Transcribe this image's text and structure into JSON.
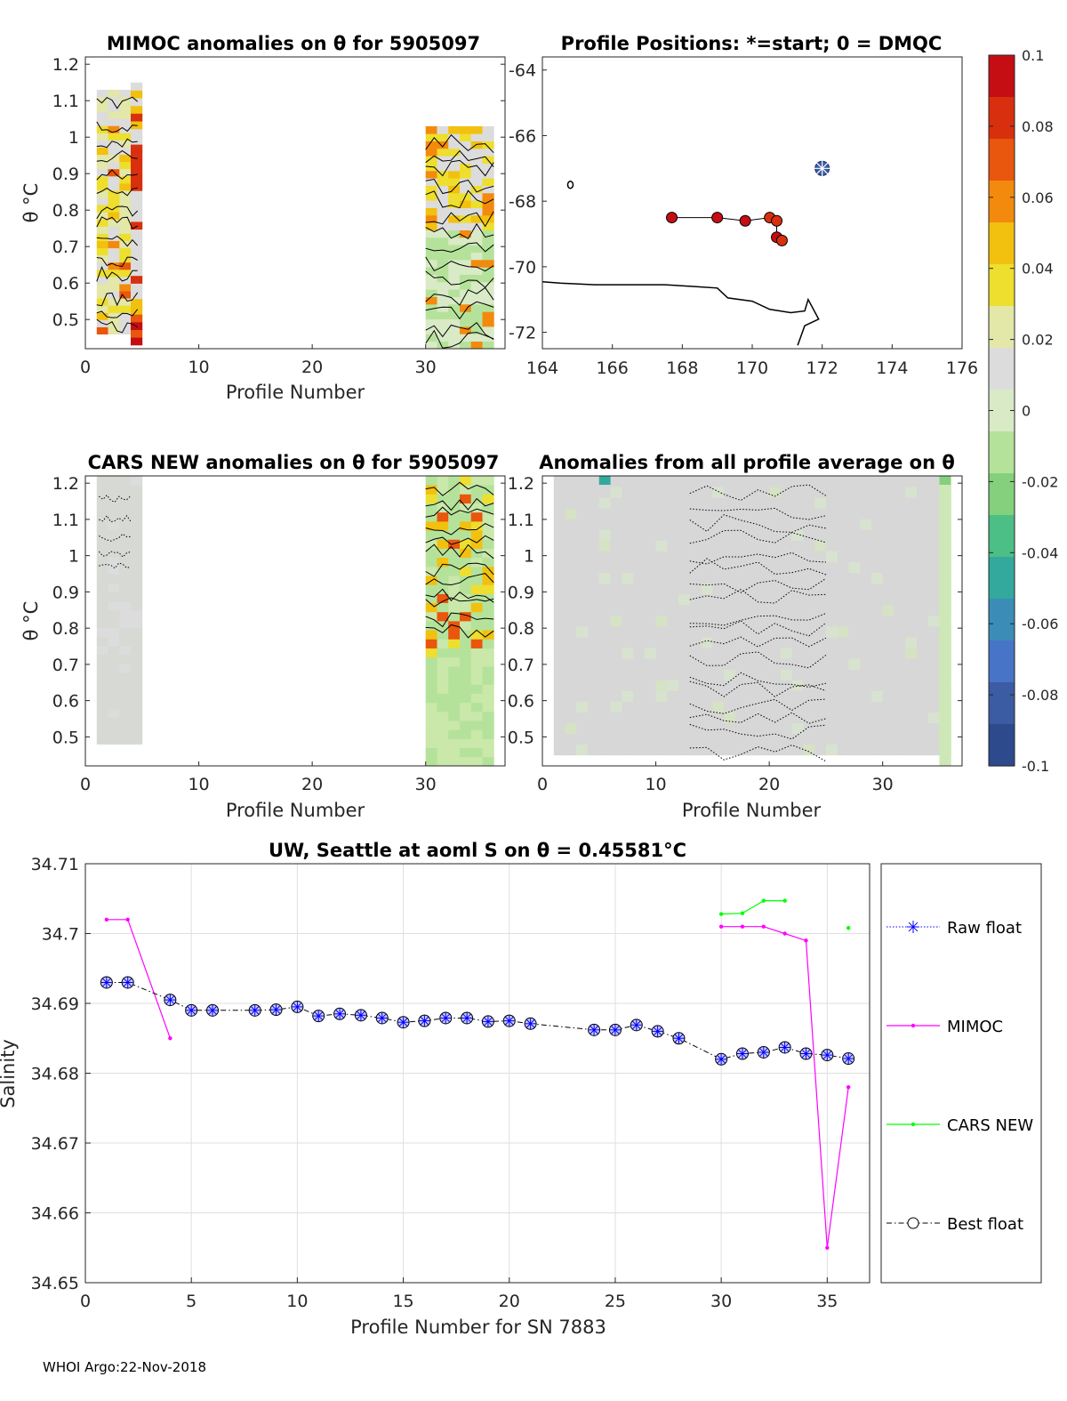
{
  "footer": "WHOI Argo:22-Nov-2018",
  "colorbar": {
    "ticks": [
      "0.1",
      "0.08",
      "0.06",
      "0.04",
      "0.02",
      "0",
      "-0.02",
      "-0.04",
      "-0.06",
      "-0.08",
      "-0.1"
    ],
    "colors": [
      "#c50d14",
      "#d8300e",
      "#e9560d",
      "#f38a0d",
      "#f2c00e",
      "#eede2e",
      "#e3e7a8",
      "#dcdcdc",
      "#d8eac6",
      "#b5e29a",
      "#84d07d",
      "#4bbf86",
      "#33a99d",
      "#3b8db7",
      "#4774c6",
      "#3b5ca2",
      "#2c4a8c"
    ]
  },
  "chart_data": [
    {
      "id": "mimoc-anomalies",
      "type": "heatmap",
      "title": "MIMOC anomalies on θ  for 5905097",
      "xlabel": "Profile Number",
      "ylabel": "θ °C",
      "xlim": [
        0,
        37
      ],
      "ylim": [
        0.42,
        1.22
      ],
      "xticks": [
        "0",
        "10",
        "20",
        "30"
      ],
      "yticks": [
        "0.5",
        "0.6",
        "0.7",
        "0.8",
        "0.9",
        "1",
        "1.1",
        "1.2"
      ]
    },
    {
      "id": "profile-positions",
      "type": "scatter",
      "title": "Profile Positions: *=start; 0 = DMQC",
      "xlim": [
        164,
        176
      ],
      "ylim": [
        -72.5,
        -63.6
      ],
      "xticks": [
        "164",
        "166",
        "168",
        "170",
        "172",
        "174",
        "176"
      ],
      "yticks": [
        "-64",
        "-66",
        "-68",
        "-70",
        "-72"
      ],
      "start": {
        "lon": 172.0,
        "lat": -67.0
      },
      "dmqc_track": [
        {
          "lon": 167.7,
          "lat": -68.5
        },
        {
          "lon": 169.0,
          "lat": -68.5
        },
        {
          "lon": 169.8,
          "lat": -68.6
        },
        {
          "lon": 170.5,
          "lat": -68.5
        },
        {
          "lon": 170.7,
          "lat": -68.6
        },
        {
          "lon": 170.7,
          "lat": -69.1
        },
        {
          "lon": 170.85,
          "lat": -69.2
        }
      ]
    },
    {
      "id": "cars-anomalies",
      "type": "heatmap",
      "title": "CARS NEW anomalies on θ for 5905097",
      "xlabel": "Profile Number",
      "ylabel": "θ °C",
      "xlim": [
        0,
        37
      ],
      "ylim": [
        0.42,
        1.22
      ],
      "xticks": [
        "0",
        "10",
        "20",
        "30"
      ],
      "yticks": [
        "0.5",
        "0.6",
        "0.7",
        "0.8",
        "0.9",
        "1",
        "1.1",
        "1.2"
      ]
    },
    {
      "id": "profile-average-anomalies",
      "type": "heatmap",
      "title": "Anomalies from all profile average on θ",
      "xlabel": "Profile Number",
      "xlim": [
        0,
        37
      ],
      "ylim": [
        0.42,
        1.22
      ],
      "xticks": [
        "0",
        "10",
        "20",
        "30"
      ],
      "yticks": [
        "0.5",
        "0.6",
        "0.7",
        "0.8",
        "0.9",
        "1",
        "1.1",
        "1.2"
      ]
    },
    {
      "id": "salinity-series",
      "type": "line",
      "title": "UW, Seattle at aoml S on θ = 0.45581°C",
      "xlabel": "Profile Number for SN 7883",
      "ylabel": "Salinity",
      "xlim": [
        0,
        37
      ],
      "ylim": [
        34.65,
        34.71
      ],
      "xticks": [
        "0",
        "5",
        "10",
        "15",
        "20",
        "25",
        "30",
        "35"
      ],
      "yticks": [
        "34.65",
        "34.66",
        "34.67",
        "34.68",
        "34.69",
        "34.7",
        "34.71"
      ],
      "series": [
        {
          "name": "Raw float",
          "color": "#0000ff",
          "x": [
            1,
            2,
            4,
            5,
            6,
            8,
            9,
            10,
            11,
            12,
            13,
            14,
            15,
            16,
            17,
            18,
            19,
            20,
            21,
            24,
            25,
            26,
            27,
            28,
            30,
            31,
            32,
            33,
            34,
            35,
            36
          ],
          "values": [
            34.693,
            34.693,
            34.6905,
            34.689,
            34.689,
            34.689,
            34.6891,
            34.6895,
            34.6882,
            34.6885,
            34.6883,
            34.6879,
            34.6873,
            34.6875,
            34.6879,
            34.6879,
            34.6874,
            34.6875,
            34.6871,
            34.6862,
            34.6862,
            34.6869,
            34.686,
            34.685,
            34.682,
            34.6828,
            34.683,
            34.6837,
            34.6828,
            34.6826,
            34.6821
          ]
        },
        {
          "name": "MIMOC",
          "color": "#ff00ff",
          "x": [
            1,
            2,
            4,
            null,
            30,
            31,
            32,
            33,
            34,
            35,
            36
          ],
          "values": [
            34.702,
            34.702,
            34.685,
            null,
            34.701,
            34.701,
            34.701,
            34.7,
            34.699,
            34.655,
            34.678
          ]
        },
        {
          "name": "CARS NEW",
          "color": "#00ff00",
          "x": [
            30,
            31,
            32,
            33,
            null,
            36
          ],
          "values": [
            34.7028,
            34.7029,
            34.7047,
            34.7047,
            null,
            34.7008
          ]
        },
        {
          "name": "Best float",
          "color": "#000000",
          "x": [
            1,
            2,
            4,
            5,
            6,
            8,
            9,
            10,
            11,
            12,
            13,
            14,
            15,
            16,
            17,
            18,
            19,
            20,
            21,
            24,
            25,
            26,
            27,
            28,
            30,
            31,
            32,
            33,
            34,
            35,
            36
          ],
          "values": [
            34.693,
            34.693,
            34.6905,
            34.689,
            34.689,
            34.689,
            34.6891,
            34.6895,
            34.6882,
            34.6885,
            34.6883,
            34.6879,
            34.6873,
            34.6875,
            34.6879,
            34.6879,
            34.6874,
            34.6875,
            34.6871,
            34.6862,
            34.6862,
            34.6869,
            34.686,
            34.685,
            34.682,
            34.6828,
            34.683,
            34.6837,
            34.6828,
            34.6826,
            34.6821
          ]
        }
      ]
    }
  ]
}
